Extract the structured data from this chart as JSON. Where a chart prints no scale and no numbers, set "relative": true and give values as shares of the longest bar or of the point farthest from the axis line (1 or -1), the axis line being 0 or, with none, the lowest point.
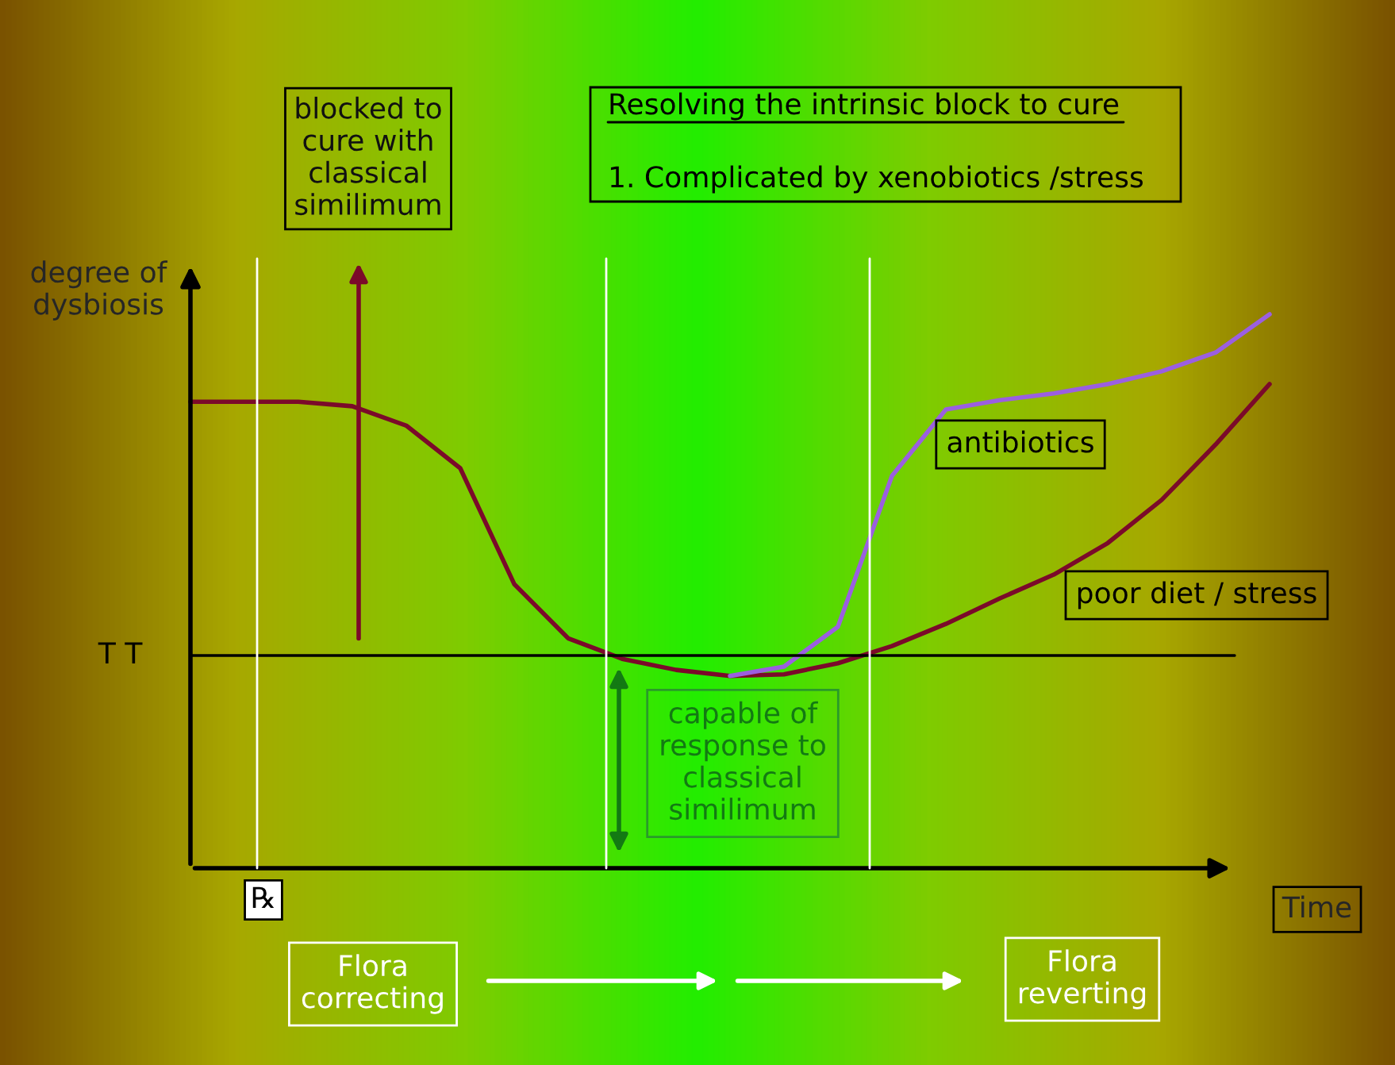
{
  "chart_data": {
    "type": "line",
    "relative": true,
    "xlabel": "Time",
    "ylabel": "degree of\ndysbiosis",
    "categories": [
      null,
      null,
      null,
      null,
      null,
      null,
      null,
      null,
      null,
      null,
      null,
      null,
      null,
      null,
      null,
      null,
      null,
      null,
      null,
      null,
      null
    ],
    "series": [
      {
        "name": "poor diet / stress",
        "color": "#7b0a2a",
        "values": [
          0.842,
          0.842,
          0.842,
          0.834,
          0.799,
          0.722,
          0.513,
          0.415,
          0.378,
          0.358,
          0.347,
          0.35,
          0.37,
          0.401,
          0.441,
          0.487,
          0.53,
          0.587,
          0.665,
          0.765,
          0.874
        ]
      },
      {
        "name": "antibiotics",
        "color": "#9b5fe0",
        "values": [
          null,
          null,
          null,
          null,
          null,
          null,
          null,
          null,
          null,
          null,
          0.347,
          0.364,
          0.436,
          0.708,
          0.828,
          0.845,
          0.857,
          0.874,
          0.897,
          0.931,
          1.0
        ]
      }
    ],
    "ref_lines": [
      {
        "axis": "y",
        "value": 0.384,
        "label": "T T",
        "color": "#000000"
      }
    ],
    "annotations": [
      "blocked to\ncure with\nclassical\nsimilimum",
      "Resolving the intrinsic block to cure",
      "1. Complicated by xenobiotics /stress",
      "capable of\nresponse to\nclassical\nsimilimum",
      "℞",
      "Flora\ncorrecting",
      "Flora\nreverting"
    ],
    "legend": false,
    "marker": "none",
    "line_style": "solid"
  }
}
